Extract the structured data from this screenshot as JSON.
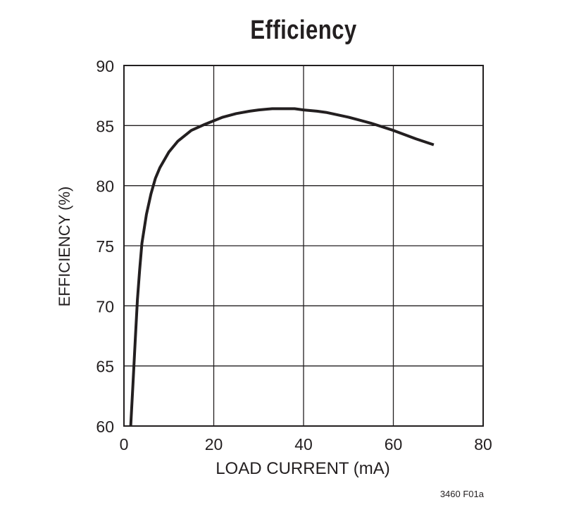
{
  "chart_data": {
    "type": "line",
    "title": "Efficiency",
    "xlabel": "LOAD CURRENT (mA)",
    "ylabel": "EFFICIENCY (%)",
    "xlim": [
      0,
      80
    ],
    "ylim": [
      60,
      90
    ],
    "xticks": [
      0,
      20,
      40,
      60,
      80
    ],
    "yticks": [
      60,
      65,
      70,
      75,
      80,
      85,
      90
    ],
    "grid": true,
    "figure_code": "3460 F01a",
    "series": [
      {
        "name": "Efficiency",
        "color": "#231f20",
        "x": [
          1.5,
          2.0,
          2.5,
          3.0,
          3.5,
          4.0,
          5.0,
          6.0,
          7.0,
          8.0,
          10.0,
          12.0,
          15.0,
          18.0,
          20.0,
          22.0,
          25.0,
          28.0,
          30.0,
          33.0,
          35.0,
          38.0,
          40.0,
          43.0,
          45.0,
          50.0,
          55.0,
          60.0,
          65.0,
          69.0
        ],
        "y": [
          60.0,
          63.5,
          67.0,
          70.5,
          73.0,
          75.2,
          77.6,
          79.3,
          80.6,
          81.5,
          82.8,
          83.7,
          84.6,
          85.1,
          85.4,
          85.7,
          86.0,
          86.2,
          86.3,
          86.4,
          86.4,
          86.4,
          86.3,
          86.2,
          86.1,
          85.7,
          85.2,
          84.6,
          83.9,
          83.4
        ]
      }
    ]
  }
}
